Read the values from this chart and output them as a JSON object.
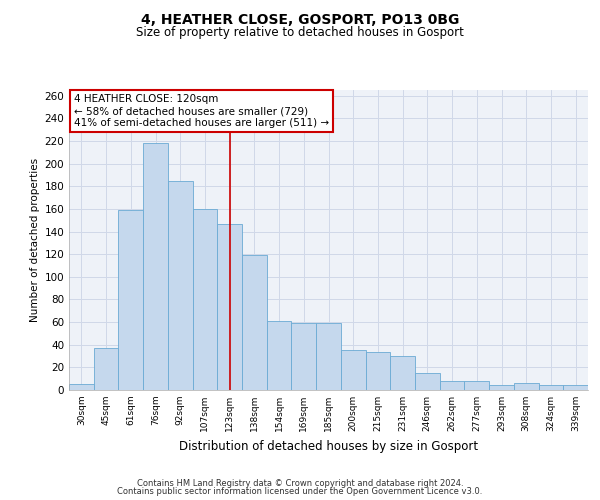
{
  "title": "4, HEATHER CLOSE, GOSPORT, PO13 0BG",
  "subtitle": "Size of property relative to detached houses in Gosport",
  "xlabel": "Distribution of detached houses by size in Gosport",
  "ylabel": "Number of detached properties",
  "categories": [
    "30sqm",
    "45sqm",
    "61sqm",
    "76sqm",
    "92sqm",
    "107sqm",
    "123sqm",
    "138sqm",
    "154sqm",
    "169sqm",
    "185sqm",
    "200sqm",
    "215sqm",
    "231sqm",
    "246sqm",
    "262sqm",
    "277sqm",
    "293sqm",
    "308sqm",
    "324sqm",
    "339sqm"
  ],
  "values": [
    5,
    37,
    159,
    218,
    185,
    160,
    147,
    119,
    61,
    59,
    59,
    35,
    34,
    30,
    15,
    8,
    8,
    4,
    6,
    4,
    4
  ],
  "bar_color": "#c5d8ed",
  "bar_edge_color": "#6aaad4",
  "grid_color": "#d0d8e8",
  "background_color": "#eef2f8",
  "ref_line_index": 6,
  "ref_line_color": "#cc0000",
  "annotation_text": "4 HEATHER CLOSE: 120sqm\n← 58% of detached houses are smaller (729)\n41% of semi-detached houses are larger (511) →",
  "annotation_box_color": "#ffffff",
  "annotation_box_edge": "#cc0000",
  "footer1": "Contains HM Land Registry data © Crown copyright and database right 2024.",
  "footer2": "Contains public sector information licensed under the Open Government Licence v3.0.",
  "ylim": [
    0,
    265
  ],
  "yticks": [
    0,
    20,
    40,
    60,
    80,
    100,
    120,
    140,
    160,
    180,
    200,
    220,
    240,
    260
  ]
}
